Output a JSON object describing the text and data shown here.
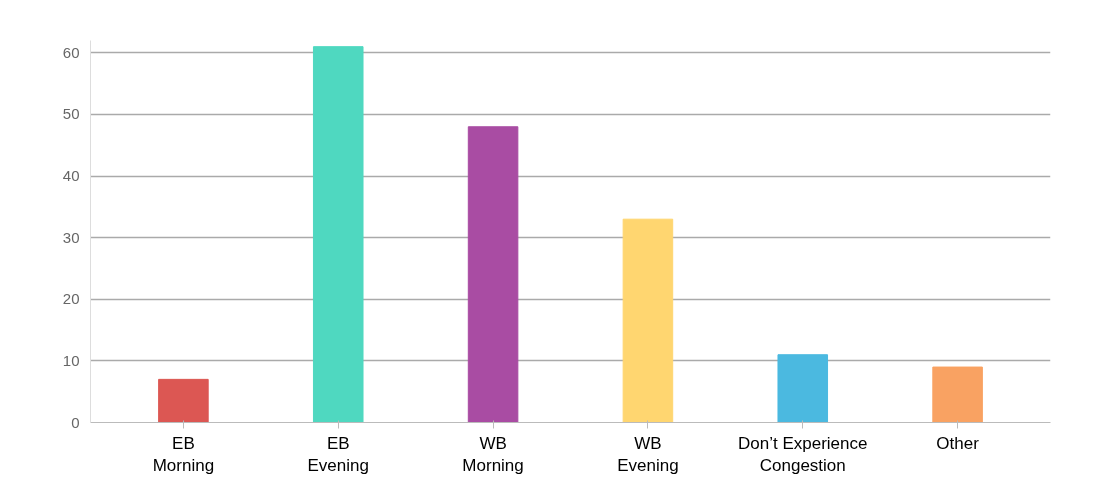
{
  "chart_data": {
    "type": "bar",
    "categories": [
      "EB\nMorning",
      "EB\nEvening",
      "WB\nMorning",
      "WB\nEvening",
      "Don’t Experience\nCongestion",
      "Other"
    ],
    "values": [
      7,
      61,
      48,
      33,
      11,
      9
    ],
    "colors": [
      "#dc5753",
      "#4fd8c0",
      "#a94ca3",
      "#ffd670",
      "#4bb9e0",
      "#f9a262"
    ],
    "ylim": [
      0,
      62
    ],
    "yticks": [
      0,
      10,
      20,
      30,
      40,
      50,
      60
    ],
    "grid": "y"
  }
}
